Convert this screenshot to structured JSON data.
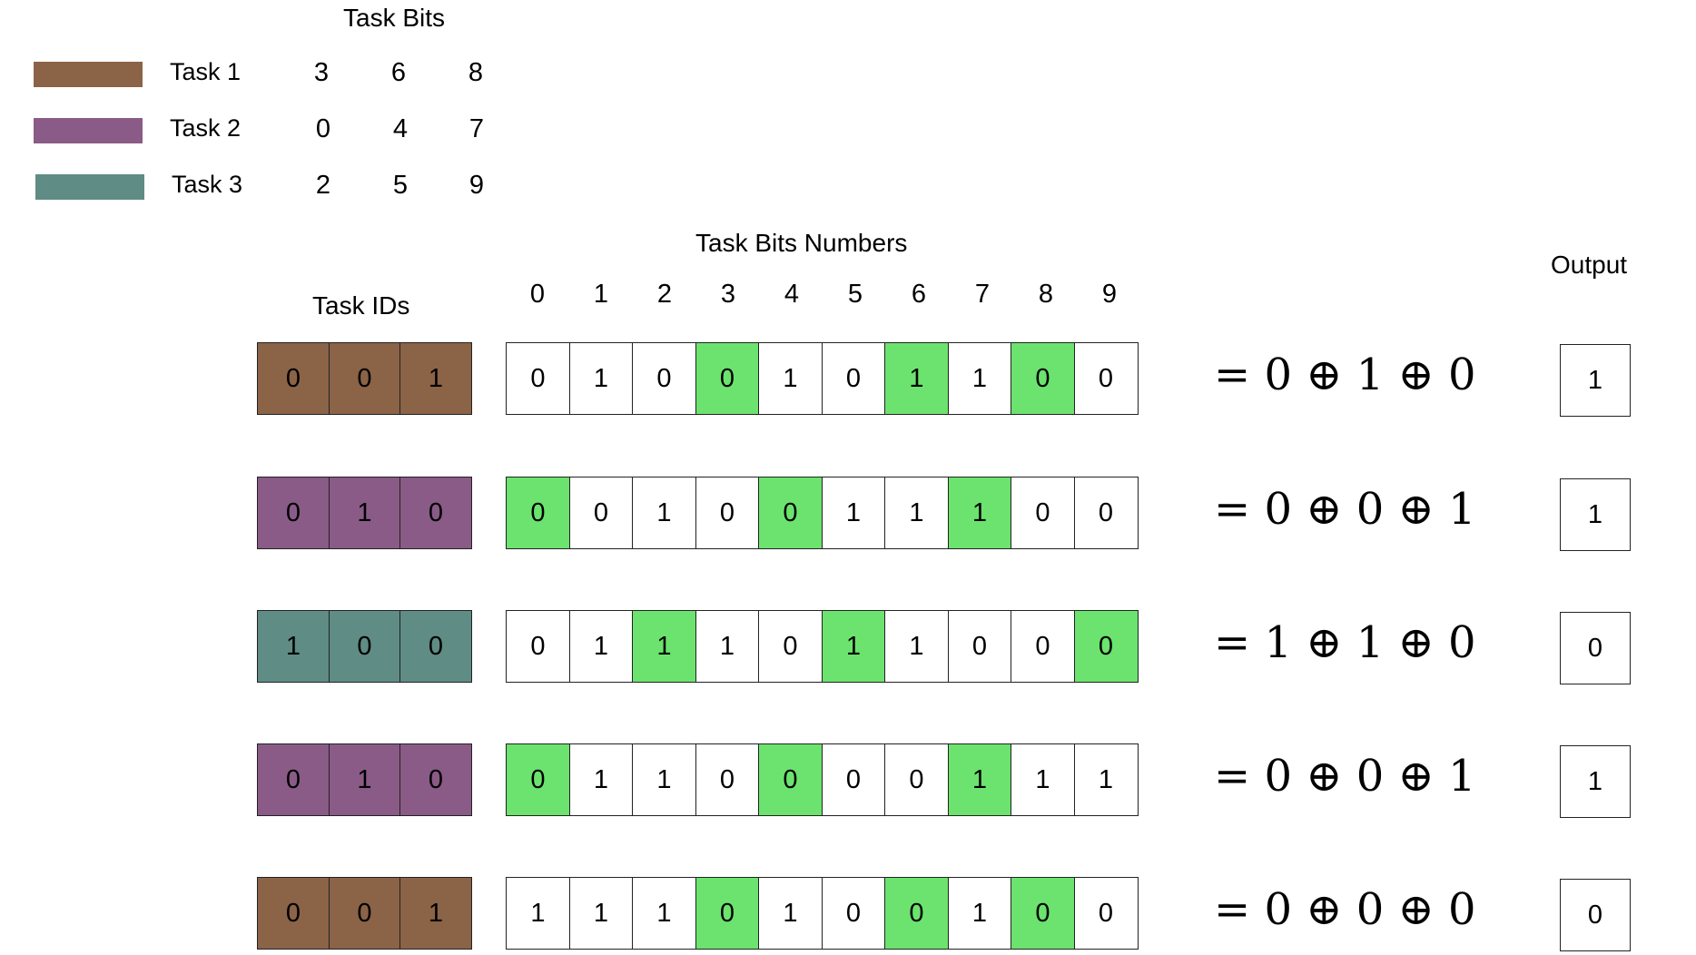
{
  "legend": {
    "header": "Task Bits",
    "tasks": [
      {
        "label": "Task 1",
        "color": "#8b6347",
        "bits": [
          "3",
          "6",
          "8"
        ]
      },
      {
        "label": "Task 2",
        "color": "#8a5b87",
        "bits": [
          "0",
          "4",
          "7"
        ]
      },
      {
        "label": "Task 3",
        "color": "#5f8c84",
        "bits": [
          "2",
          "5",
          "9"
        ]
      }
    ]
  },
  "task_ids_header": "Task IDs",
  "task_bits_numbers_header": "Task Bits Numbers",
  "output_header": "Output",
  "column_numbers": [
    "0",
    "1",
    "2",
    "3",
    "4",
    "5",
    "6",
    "7",
    "8",
    "9"
  ],
  "highlight_color": "#6be36e",
  "rows": [
    {
      "task": 1,
      "id_bits": [
        "0",
        "0",
        "1"
      ],
      "bits": [
        "0",
        "1",
        "0",
        "0",
        "1",
        "0",
        "1",
        "1",
        "0",
        "0"
      ],
      "highlight": [
        3,
        6,
        8
      ],
      "equation": "= 0 ⊕ 1 ⊕ 0",
      "output": "1"
    },
    {
      "task": 2,
      "id_bits": [
        "0",
        "1",
        "0"
      ],
      "bits": [
        "0",
        "0",
        "1",
        "0",
        "0",
        "1",
        "1",
        "1",
        "0",
        "0"
      ],
      "highlight": [
        0,
        4,
        7
      ],
      "equation": "= 0 ⊕ 0 ⊕ 1",
      "output": "1"
    },
    {
      "task": 3,
      "id_bits": [
        "1",
        "0",
        "0"
      ],
      "bits": [
        "0",
        "1",
        "1",
        "1",
        "0",
        "1",
        "1",
        "0",
        "0",
        "0"
      ],
      "highlight": [
        2,
        5,
        9
      ],
      "equation": "= 1 ⊕ 1 ⊕ 0",
      "output": "0"
    },
    {
      "task": 2,
      "id_bits": [
        "0",
        "1",
        "0"
      ],
      "bits": [
        "0",
        "1",
        "1",
        "0",
        "0",
        "0",
        "0",
        "1",
        "1",
        "1"
      ],
      "highlight": [
        0,
        4,
        7
      ],
      "equation": "= 0 ⊕ 0 ⊕ 1",
      "output": "1"
    },
    {
      "task": 1,
      "id_bits": [
        "0",
        "0",
        "1"
      ],
      "bits": [
        "1",
        "1",
        "1",
        "0",
        "1",
        "0",
        "0",
        "1",
        "0",
        "0"
      ],
      "highlight": [
        3,
        6,
        8
      ],
      "equation": "= 0 ⊕ 0 ⊕ 0",
      "output": "0"
    }
  ]
}
